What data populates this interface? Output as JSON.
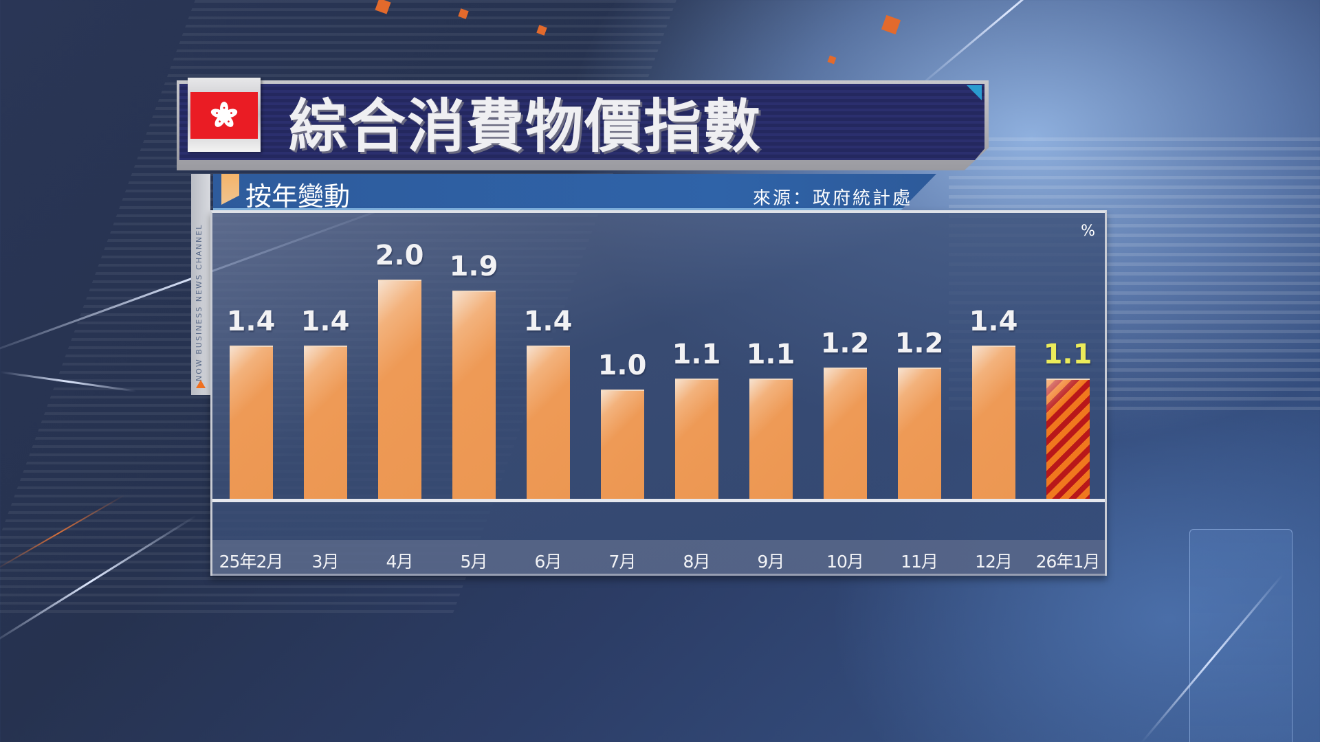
{
  "header": {
    "title": "綜合消費物價指數",
    "flag": "hong-kong-flag",
    "flag_colors": {
      "red": "#ea1c24",
      "flower": "#ffffff"
    }
  },
  "subheader": {
    "title": "按年變動",
    "source": "來源：政府統計處"
  },
  "side_strip": {
    "text": "NOW BUSINESS NEWS CHANNEL"
  },
  "chart": {
    "unit": "%"
  },
  "colors": {
    "bar": "#ec9752",
    "bar_highlight_stripe_a": "#f0781e",
    "bar_highlight_stripe_b": "#b8171a",
    "label": "#f2f2f4",
    "label_highlight": "#ecec5a",
    "header_navy": "#2b2f6e",
    "subheader_blue": "#2f63a8"
  },
  "chart_data": {
    "type": "bar",
    "title": "綜合消費物價指數",
    "subtitle": "按年變動",
    "source": "來源：政府統計處",
    "xlabel": "",
    "ylabel": "%",
    "categories": [
      "25年2月",
      "3月",
      "4月",
      "5月",
      "6月",
      "7月",
      "8月",
      "9月",
      "10月",
      "11月",
      "12月",
      "26年1月"
    ],
    "values": [
      1.4,
      1.4,
      2.0,
      1.9,
      1.4,
      1.0,
      1.1,
      1.1,
      1.2,
      1.2,
      1.4,
      1.1
    ],
    "value_labels": [
      "1.4",
      "1.4",
      "2.0",
      "1.9",
      "1.4",
      "1.0",
      "1.1",
      "1.1",
      "1.2",
      "1.2",
      "1.4",
      "1.1"
    ],
    "highlight_index": 11,
    "ylim": [
      0,
      2.6
    ],
    "grid": false,
    "legend": null
  }
}
